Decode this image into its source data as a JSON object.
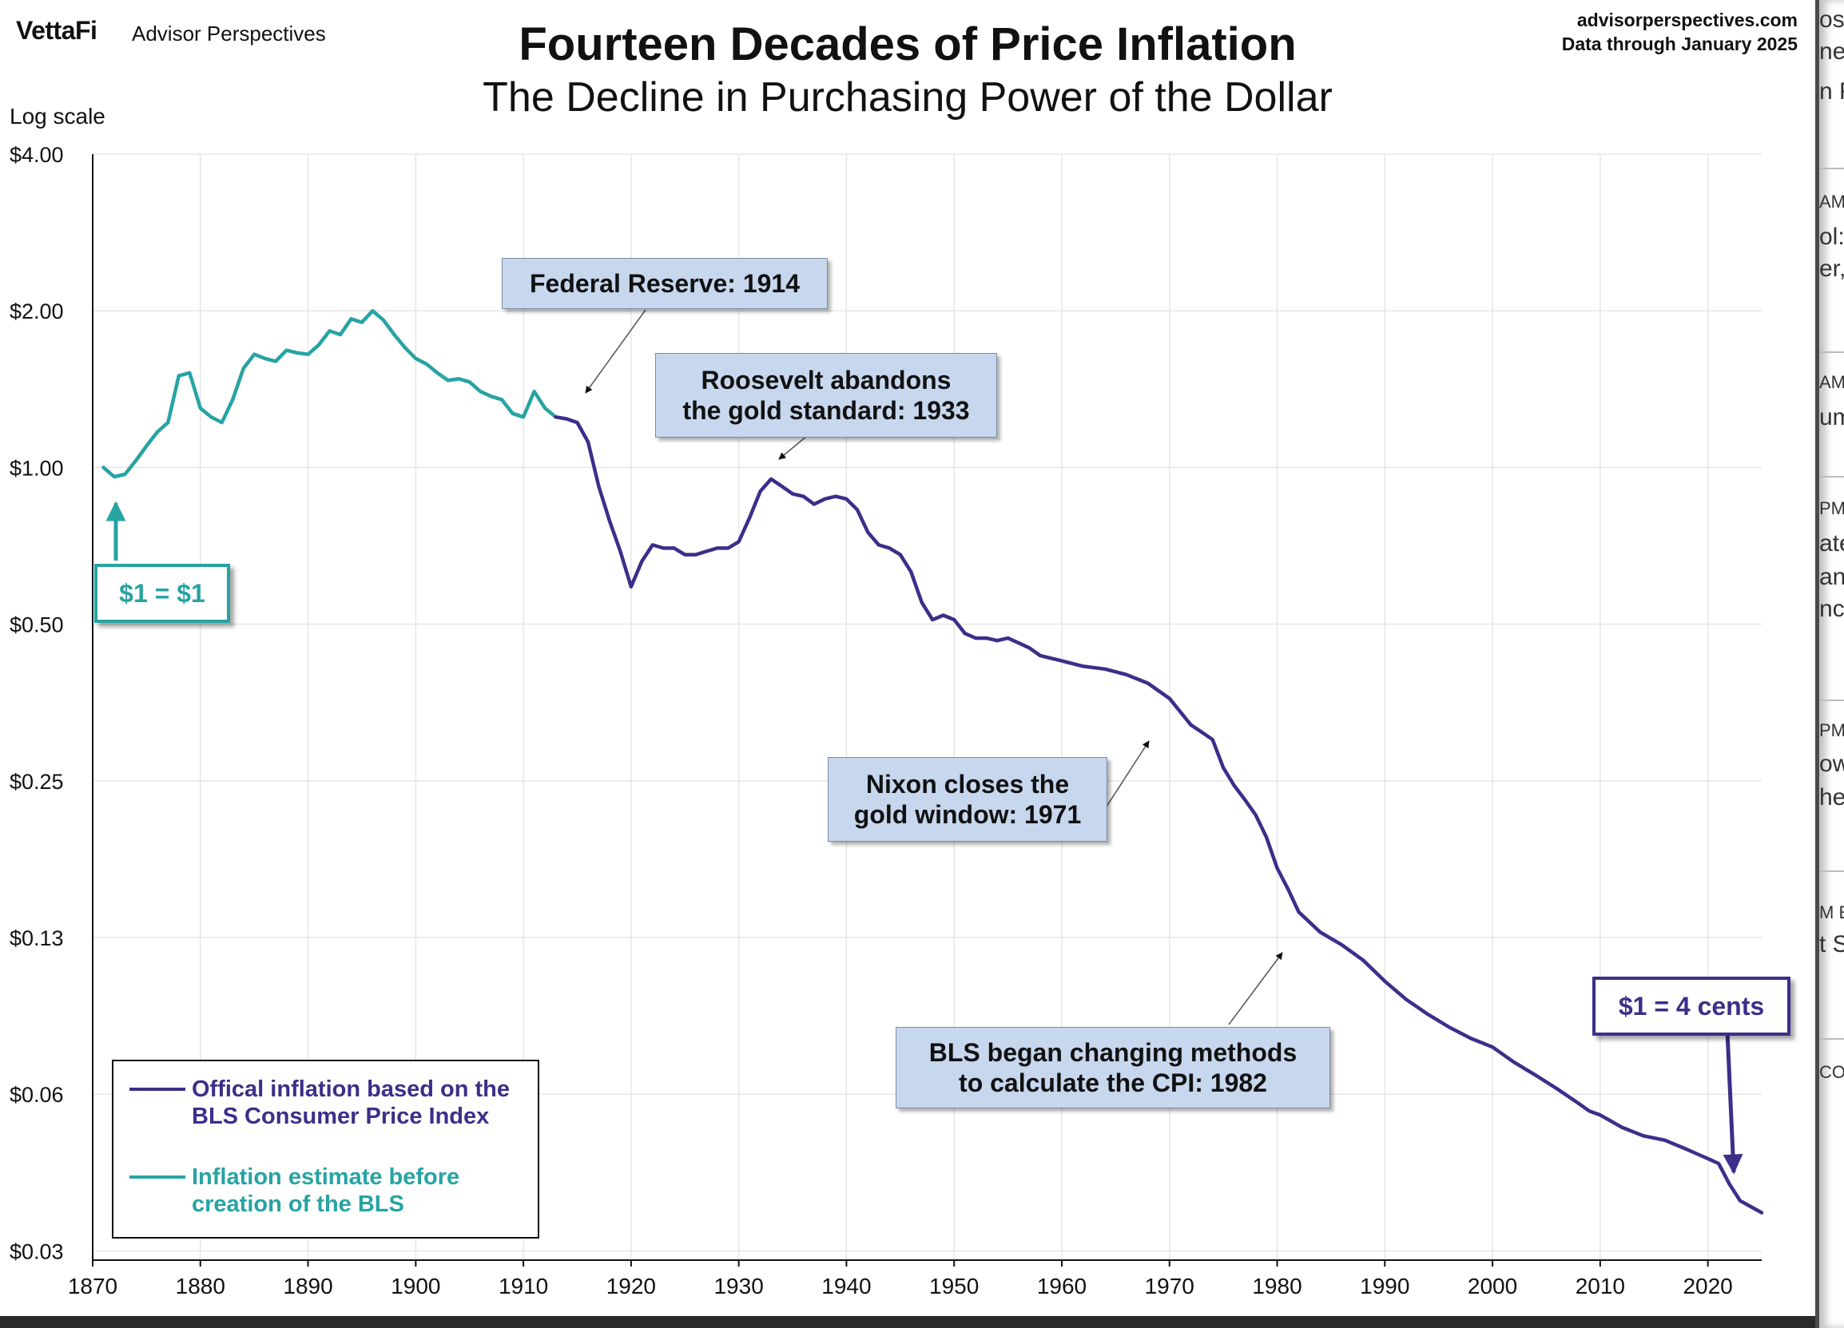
{
  "header": {
    "brand": "VettaFi",
    "brand_sub": "Advisor Perspectives",
    "title": "Fourteen Decades of Price Inflation",
    "subtitle": "The Decline in Purchasing Power of the Dollar",
    "source_url": "advisorperspectives.com",
    "source_note": "Data through  January 2025"
  },
  "colors": {
    "official": "#3d2e8a",
    "estimate": "#27a3a3",
    "callout_bg": "#c7d7ee",
    "grid": "#e6e6e6"
  },
  "annotations": {
    "fed": "Federal Reserve: 1914",
    "roosevelt_1": "Roosevelt abandons",
    "roosevelt_2": "the gold standard: 1933",
    "nixon_1": "Nixon closes the",
    "nixon_2": "gold window: 1971",
    "bls_1": "BLS began  changing methods",
    "bls_2": "to calculate the CPI: 1982",
    "start": "$1 = $1",
    "end": "$1 = 4 cents"
  },
  "legend": {
    "official_1": "Offical inflation based on the",
    "official_2": "BLS Consumer Price Index",
    "estimate_1": "Inflation estimate before",
    "estimate_2": "creation of the BLS"
  },
  "partial_strip": [
    "os",
    "ne",
    "n F",
    "AM",
    "ol:",
    "er,",
    "AM",
    "um",
    "PM",
    "ate",
    "and",
    "nc",
    "PM",
    "ow",
    "he",
    "M E",
    "t S",
    "CO"
  ],
  "chart_data": {
    "type": "line",
    "title": "Fourteen Decades of Price Inflation",
    "subtitle": "The Decline in Purchasing Power of the Dollar",
    "ylabel": "Log scale",
    "y_scale": "log",
    "ylim": [
      0.03,
      4.0
    ],
    "xlim": [
      1870,
      2025
    ],
    "grid": true,
    "legend_position": "bottom-left",
    "x_ticks": [
      "1870",
      "1880",
      "1890",
      "1900",
      "1910",
      "1920",
      "1930",
      "1940",
      "1950",
      "1960",
      "1970",
      "1980",
      "1990",
      "2000",
      "2010",
      "2020"
    ],
    "y_ticks": [
      {
        "value": 4.0,
        "label": "$4.00"
      },
      {
        "value": 2.0,
        "label": "$2.00"
      },
      {
        "value": 1.0,
        "label": "$1.00"
      },
      {
        "value": 0.5,
        "label": "$0.50"
      },
      {
        "value": 0.25,
        "label": "$0.25"
      },
      {
        "value": 0.125,
        "label": "$0.13"
      },
      {
        "value": 0.0625,
        "label": "$0.06"
      },
      {
        "value": 0.03125,
        "label": "$0.03"
      }
    ],
    "series": [
      {
        "name": "Inflation estimate before creation of the BLS",
        "color": "#27a3a3",
        "x": [
          1871,
          1872,
          1873,
          1874,
          1875,
          1876,
          1877,
          1878,
          1879,
          1880,
          1881,
          1882,
          1883,
          1884,
          1885,
          1886,
          1887,
          1888,
          1889,
          1890,
          1891,
          1892,
          1893,
          1894,
          1895,
          1896,
          1897,
          1898,
          1899,
          1900,
          1901,
          1902,
          1903,
          1904,
          1905,
          1906,
          1907,
          1908,
          1909,
          1910,
          1911,
          1912,
          1913
        ],
        "y": [
          1.0,
          0.96,
          0.97,
          1.03,
          1.1,
          1.17,
          1.22,
          1.5,
          1.52,
          1.3,
          1.25,
          1.22,
          1.35,
          1.55,
          1.65,
          1.62,
          1.6,
          1.68,
          1.66,
          1.65,
          1.72,
          1.83,
          1.8,
          1.93,
          1.9,
          2.0,
          1.92,
          1.8,
          1.7,
          1.62,
          1.58,
          1.52,
          1.47,
          1.48,
          1.46,
          1.4,
          1.37,
          1.35,
          1.27,
          1.25,
          1.4,
          1.3,
          1.25
        ]
      },
      {
        "name": "Offical inflation based on the BLS Consumer Price Index",
        "color": "#3d2e8a",
        "x": [
          1913,
          1914,
          1915,
          1916,
          1917,
          1918,
          1919,
          1920,
          1921,
          1922,
          1923,
          1924,
          1925,
          1926,
          1927,
          1928,
          1929,
          1930,
          1931,
          1932,
          1933,
          1934,
          1935,
          1936,
          1937,
          1938,
          1939,
          1940,
          1941,
          1942,
          1943,
          1944,
          1945,
          1946,
          1947,
          1948,
          1949,
          1950,
          1951,
          1952,
          1953,
          1954,
          1955,
          1956,
          1957,
          1958,
          1959,
          1960,
          1962,
          1964,
          1966,
          1968,
          1970,
          1972,
          1973,
          1974,
          1975,
          1976,
          1977,
          1978,
          1979,
          1980,
          1981,
          1982,
          1984,
          1986,
          1988,
          1990,
          1992,
          1994,
          1996,
          1998,
          2000,
          2002,
          2004,
          2006,
          2008,
          2009,
          2010,
          2012,
          2014,
          2016,
          2018,
          2019,
          2020,
          2021,
          2022,
          2023,
          2024,
          2025
        ],
        "y": [
          1.25,
          1.24,
          1.22,
          1.12,
          0.92,
          0.79,
          0.69,
          0.59,
          0.66,
          0.71,
          0.7,
          0.7,
          0.68,
          0.68,
          0.69,
          0.7,
          0.7,
          0.72,
          0.8,
          0.9,
          0.95,
          0.92,
          0.89,
          0.88,
          0.85,
          0.87,
          0.88,
          0.87,
          0.83,
          0.75,
          0.71,
          0.7,
          0.68,
          0.63,
          0.55,
          0.51,
          0.52,
          0.51,
          0.48,
          0.47,
          0.47,
          0.465,
          0.47,
          0.46,
          0.45,
          0.435,
          0.43,
          0.425,
          0.415,
          0.41,
          0.4,
          0.385,
          0.36,
          0.32,
          0.31,
          0.3,
          0.265,
          0.245,
          0.23,
          0.215,
          0.195,
          0.17,
          0.155,
          0.14,
          0.128,
          0.121,
          0.113,
          0.103,
          0.095,
          0.089,
          0.084,
          0.08,
          0.077,
          0.072,
          0.068,
          0.064,
          0.06,
          0.058,
          0.057,
          0.054,
          0.052,
          0.051,
          0.049,
          0.048,
          0.047,
          0.046,
          0.042,
          0.039,
          0.038,
          0.037
        ]
      }
    ]
  }
}
